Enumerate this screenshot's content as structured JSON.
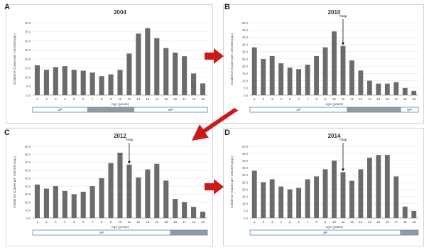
{
  "chart_data": [
    {
      "panel_label": "A",
      "type": "bar",
      "title": "2004",
      "xlabel": "Age (years)",
      "ylabel": "Incidence (Cases per 100,000 pop.)",
      "ylim": [
        0,
        40
      ],
      "yticks": [
        "0.0",
        "5.0",
        "10.0",
        "15.0",
        "20.0",
        "25.0",
        "30.0",
        "35.0",
        "40.0"
      ],
      "categories": [
        "1",
        "2",
        "3",
        "4",
        "5",
        "6",
        "7",
        "8",
        "9",
        "10",
        "11",
        "12",
        "13",
        "14",
        "15",
        "16",
        "17",
        "18",
        "19"
      ],
      "values": [
        16.5,
        14,
        15.5,
        16,
        14,
        13.5,
        12.5,
        10.5,
        11.5,
        14,
        23,
        34,
        37,
        31.5,
        26,
        23.5,
        21.5,
        12,
        6.5
      ],
      "bar_color": "#6b6b6b",
      "strip": [
        {
          "label": "aP",
          "start": 1,
          "end": 6,
          "fill": "#ffffff"
        },
        {
          "label": "",
          "start": 7,
          "end": 11,
          "fill": "#999999"
        },
        {
          "label": "wP",
          "start": 12,
          "end": 19,
          "fill": "#ffffff"
        }
      ]
    },
    {
      "panel_label": "B",
      "type": "bar",
      "title": "2010",
      "xlabel": "Age (years)",
      "ylabel": "Incidence (Cases per 100,000 pop.)",
      "ylim": [
        0,
        50
      ],
      "yticks": [
        "0.0",
        "5.0",
        "10.0",
        "15.0",
        "20.0",
        "25.0",
        "30.0",
        "35.0",
        "40.0",
        "45.0",
        "50.0"
      ],
      "categories": [
        "1",
        "2",
        "3",
        "4",
        "5",
        "6",
        "7",
        "8",
        "9",
        "10",
        "11",
        "12",
        "13",
        "14",
        "15",
        "16",
        "17",
        "18",
        "19"
      ],
      "values": [
        33,
        25,
        27,
        22,
        19,
        18,
        21,
        27,
        33,
        44,
        34,
        24,
        17,
        10,
        8,
        8,
        9,
        5,
        3
      ],
      "bar_color": "#6b6b6b",
      "annotation": {
        "text": "Tdap",
        "category": "11"
      },
      "strip": [
        {
          "label": "aP",
          "start": 1,
          "end": 11,
          "fill": "#ffffff"
        },
        {
          "label": "",
          "start": 12,
          "end": 17,
          "fill": "#999999"
        },
        {
          "label": "wP",
          "start": 18,
          "end": 19,
          "fill": "#ffffff"
        }
      ]
    },
    {
      "panel_label": "C",
      "type": "bar",
      "title": "2012",
      "xlabel": "Age (years)",
      "ylabel": "Incidence (Cases per 100,000 pop.)",
      "ylim": [
        0,
        90
      ],
      "yticks": [
        "0.0",
        "10.0",
        "20.0",
        "30.0",
        "40.0",
        "50.0",
        "60.0",
        "70.0",
        "80.0",
        "90.0"
      ],
      "categories": [
        "1",
        "2",
        "3",
        "4",
        "5",
        "6",
        "7",
        "8",
        "9",
        "10",
        "11",
        "12",
        "13",
        "14",
        "15",
        "16",
        "17",
        "18",
        "19"
      ],
      "values": [
        42,
        37,
        40,
        34,
        30,
        33,
        40,
        50,
        69,
        82,
        67,
        51,
        61,
        68,
        47,
        24,
        20,
        14,
        8
      ],
      "bar_color": "#6b6b6b",
      "annotation": {
        "text": "Tdap",
        "category": "11"
      },
      "strip": [
        {
          "label": "aP",
          "start": 1,
          "end": 15,
          "fill": "#ffffff"
        },
        {
          "label": "",
          "start": 16,
          "end": 19,
          "fill": "#999999"
        }
      ]
    },
    {
      "panel_label": "D",
      "type": "bar",
      "title": "2014",
      "xlabel": "Age (years)",
      "ylabel": "Incidence (Cases per 100,000 pop.)",
      "ylim": [
        0,
        50
      ],
      "yticks": [
        "0.0",
        "5.0",
        "10.0",
        "15.0",
        "20.0",
        "25.0",
        "30.0",
        "35.0",
        "40.0",
        "45.0",
        "50.0"
      ],
      "categories": [
        "1",
        "2",
        "3",
        "4",
        "5",
        "6",
        "7",
        "8",
        "9",
        "10",
        "11",
        "12",
        "13",
        "14",
        "15",
        "16",
        "17",
        "18",
        "19"
      ],
      "values": [
        33,
        25,
        27,
        22,
        20,
        21,
        27,
        29,
        34,
        40,
        32,
        26,
        34,
        42,
        44,
        44,
        29,
        8,
        5
      ],
      "bar_color": "#6b6b6b",
      "annotation": {
        "text": "Tdap",
        "category": "11"
      },
      "strip": [
        {
          "label": "aP",
          "start": 1,
          "end": 17,
          "fill": "#ffffff"
        },
        {
          "label": "",
          "start": 18,
          "end": 19,
          "fill": "#999999"
        }
      ]
    }
  ],
  "arrow_color": "#cc1a1a"
}
